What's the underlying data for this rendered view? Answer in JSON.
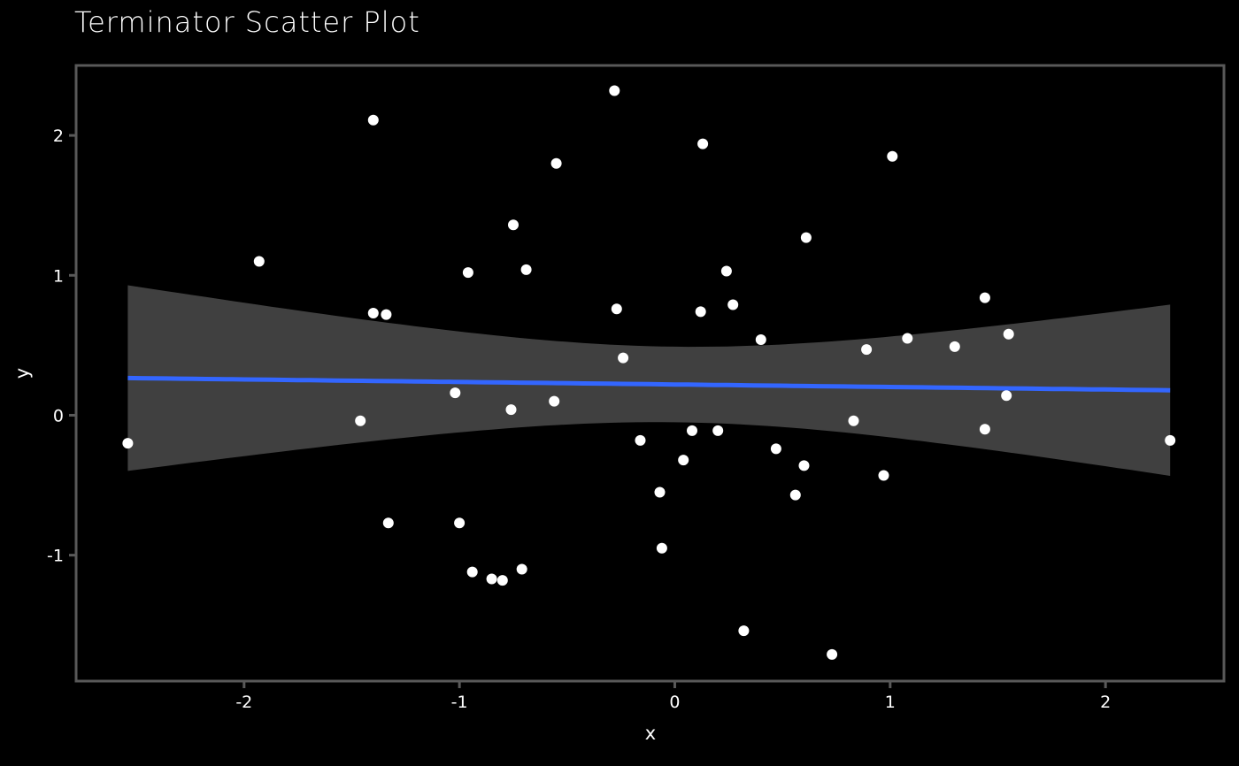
{
  "chart_data": {
    "type": "scatter",
    "title": "Terminator Scatter Plot",
    "xlabel": "x",
    "ylabel": "y",
    "xlim": [
      -2.78,
      2.55
    ],
    "ylim": [
      -1.9,
      2.5
    ],
    "x_ticks": [
      -2,
      -1,
      0,
      1,
      2
    ],
    "x_tick_labels": [
      "-2",
      "-1",
      "0",
      "1",
      "2"
    ],
    "y_ticks": [
      -1,
      0,
      1,
      2
    ],
    "y_tick_labels": [
      "-1",
      "0",
      "1",
      "2"
    ],
    "grid": false,
    "colors": {
      "background": "#000000",
      "panel_border": "#595959",
      "points": "#ffffff",
      "fit_line": "#3366ff",
      "confidence_band": "#404040",
      "text": "#ffffff"
    },
    "points": [
      {
        "x": -2.54,
        "y": -0.2
      },
      {
        "x": -1.93,
        "y": 1.1
      },
      {
        "x": -1.4,
        "y": 2.11
      },
      {
        "x": -1.4,
        "y": 0.73
      },
      {
        "x": -1.34,
        "y": 0.72
      },
      {
        "x": -1.46,
        "y": -0.04
      },
      {
        "x": -1.33,
        "y": -0.77
      },
      {
        "x": -1.02,
        "y": 0.16
      },
      {
        "x": -1.0,
        "y": -0.77
      },
      {
        "x": -0.96,
        "y": 1.02
      },
      {
        "x": -0.94,
        "y": -1.12
      },
      {
        "x": -0.85,
        "y": -1.17
      },
      {
        "x": -0.8,
        "y": -1.18
      },
      {
        "x": -0.75,
        "y": 1.36
      },
      {
        "x": -0.76,
        "y": 0.04
      },
      {
        "x": -0.71,
        "y": -1.1
      },
      {
        "x": -0.69,
        "y": 1.04
      },
      {
        "x": -0.55,
        "y": 1.8
      },
      {
        "x": -0.56,
        "y": 0.1
      },
      {
        "x": -0.28,
        "y": 2.32
      },
      {
        "x": -0.27,
        "y": 0.76
      },
      {
        "x": -0.24,
        "y": 0.41
      },
      {
        "x": -0.16,
        "y": -0.18
      },
      {
        "x": -0.07,
        "y": -0.55
      },
      {
        "x": -0.06,
        "y": -0.95
      },
      {
        "x": 0.04,
        "y": -0.32
      },
      {
        "x": 0.08,
        "y": -0.11
      },
      {
        "x": 0.12,
        "y": 0.74
      },
      {
        "x": 0.13,
        "y": 1.94
      },
      {
        "x": 0.2,
        "y": -0.11
      },
      {
        "x": 0.24,
        "y": 1.03
      },
      {
        "x": 0.27,
        "y": 0.79
      },
      {
        "x": 0.32,
        "y": -1.54
      },
      {
        "x": 0.4,
        "y": 0.54
      },
      {
        "x": 0.47,
        "y": -0.24
      },
      {
        "x": 0.56,
        "y": -0.57
      },
      {
        "x": 0.6,
        "y": -0.36
      },
      {
        "x": 0.61,
        "y": 1.27
      },
      {
        "x": 0.73,
        "y": -1.71
      },
      {
        "x": 0.83,
        "y": -0.04
      },
      {
        "x": 0.89,
        "y": 0.47
      },
      {
        "x": 0.97,
        "y": -0.43
      },
      {
        "x": 1.01,
        "y": 1.85
      },
      {
        "x": 1.08,
        "y": 0.55
      },
      {
        "x": 1.3,
        "y": 0.49
      },
      {
        "x": 1.44,
        "y": 0.84
      },
      {
        "x": 1.44,
        "y": -0.1
      },
      {
        "x": 1.54,
        "y": 0.14
      },
      {
        "x": 1.55,
        "y": 0.58
      },
      {
        "x": 2.3,
        "y": -0.18
      }
    ],
    "fit": {
      "method": "linear",
      "x_range": [
        -2.54,
        2.3
      ],
      "intercept": 0.22,
      "slope": -0.018,
      "se_scale": {
        "s": 0.27,
        "x_mean": 0.0,
        "sxx": 1.28
      }
    }
  }
}
